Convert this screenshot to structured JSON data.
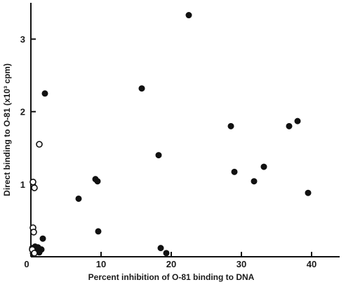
{
  "chart_data": {
    "type": "scatter",
    "title": "",
    "xlabel": "Percent inhibition of O-81 binding to DNA",
    "ylabel": "Direct binding to O-81 (x10³ cpm)",
    "xlim": [
      0,
      44
    ],
    "ylim": [
      0,
      3.5
    ],
    "x_ticks": [
      0,
      10,
      20,
      30,
      40
    ],
    "y_ticks": [
      1,
      2,
      3
    ],
    "grid": false,
    "legend": null,
    "colors": {
      "filled": "#111111",
      "open": "#111111",
      "axis": "#111111"
    },
    "series": [
      {
        "marker": "filled-circle",
        "points": [
          [
            0.2,
            0.12
          ],
          [
            0.4,
            0.07
          ],
          [
            0.6,
            0.14
          ],
          [
            0.8,
            0.09
          ],
          [
            1.0,
            0.13
          ],
          [
            1.2,
            0.06
          ],
          [
            0.5,
            0.1
          ],
          [
            0.9,
            0.11
          ],
          [
            0.3,
            0.05
          ],
          [
            1.1,
            0.08
          ],
          [
            1.5,
            0.1
          ],
          [
            1.7,
            0.25
          ],
          [
            2.0,
            2.25
          ],
          [
            6.8,
            0.8
          ],
          [
            9.2,
            1.07
          ],
          [
            9.5,
            1.04
          ],
          [
            9.6,
            0.35
          ],
          [
            15.8,
            2.32
          ],
          [
            18.2,
            1.4
          ],
          [
            18.5,
            0.12
          ],
          [
            19.3,
            0.05
          ],
          [
            22.5,
            3.33
          ],
          [
            28.5,
            1.8
          ],
          [
            29.0,
            1.17
          ],
          [
            31.8,
            1.04
          ],
          [
            33.2,
            1.24
          ],
          [
            36.8,
            1.8
          ],
          [
            38.0,
            1.87
          ],
          [
            39.5,
            0.88
          ]
        ]
      },
      {
        "marker": "open-circle",
        "points": [
          [
            1.2,
            1.55
          ],
          [
            0.3,
            1.03
          ],
          [
            0.5,
            0.95
          ],
          [
            0.3,
            0.4
          ],
          [
            0.4,
            0.34
          ],
          [
            0.2,
            0.1
          ],
          [
            0.5,
            0.05
          ]
        ]
      }
    ]
  }
}
